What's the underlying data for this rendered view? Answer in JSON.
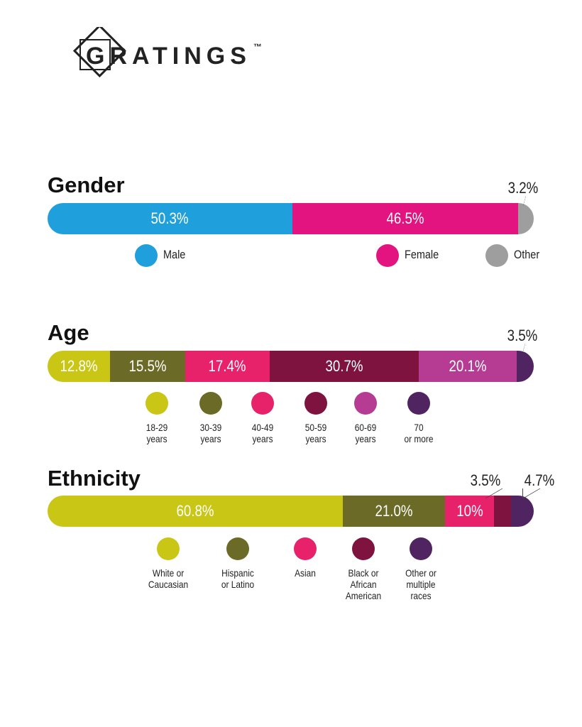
{
  "logo": {
    "brand": "GRATINGS",
    "trademark": "™"
  },
  "chart_data": [
    {
      "type": "stacked-bar",
      "title": "Gender",
      "series": [
        {
          "name": "Male",
          "color": "#1fa0dc",
          "values": [
            50.3
          ],
          "value_labels": [
            "50.3%"
          ]
        },
        {
          "name": "Female",
          "color": "#e3137f",
          "values": [
            46.5
          ],
          "value_labels": [
            "46.5%"
          ]
        },
        {
          "name": "Other",
          "color": "#9e9e9e",
          "values": [
            3.2
          ],
          "value_labels": [
            "3.2%"
          ]
        }
      ]
    },
    {
      "type": "stacked-bar",
      "title": "Age",
      "series": [
        {
          "name": "18-29\nyears",
          "color": "#c9c615",
          "values": [
            12.8
          ],
          "value_labels": [
            "12.8%"
          ]
        },
        {
          "name": "30-39\nyears",
          "color": "#6b6a26",
          "values": [
            15.5
          ],
          "value_labels": [
            "15.5%"
          ]
        },
        {
          "name": "40-49\nyears",
          "color": "#e8226a",
          "values": [
            17.4
          ],
          "value_labels": [
            "17.4%"
          ]
        },
        {
          "name": "50-59\nyears",
          "color": "#7f1340",
          "values": [
            30.7
          ],
          "value_labels": [
            "30.7%"
          ]
        },
        {
          "name": "60-69\nyears",
          "color": "#b63c93",
          "values": [
            20.1
          ],
          "value_labels": [
            "20.1%"
          ]
        },
        {
          "name": "70\nor more",
          "color": "#4f2460",
          "values": [
            3.5
          ],
          "value_labels": [
            "3.5%"
          ]
        }
      ]
    },
    {
      "type": "stacked-bar",
      "title": "Ethnicity",
      "series": [
        {
          "name": "White or\nCaucasian",
          "color": "#c9c615",
          "values": [
            60.8
          ],
          "value_labels": [
            "60.8%"
          ]
        },
        {
          "name": "Hispanic\nor Latino",
          "color": "#6b6a26",
          "values": [
            21.0
          ],
          "value_labels": [
            "21.0%"
          ]
        },
        {
          "name": "Asian",
          "color": "#e8226a",
          "values": [
            10
          ],
          "value_labels": [
            "10%"
          ]
        },
        {
          "name": "Black or\nAfrican\nAmerican",
          "color": "#7f1340",
          "values": [
            3.5
          ],
          "value_labels": [
            "3.5%"
          ]
        },
        {
          "name": "Other or\nmultiple\nraces",
          "color": "#4f2460",
          "values": [
            4.7
          ],
          "value_labels": [
            "4.7%"
          ]
        }
      ]
    }
  ]
}
